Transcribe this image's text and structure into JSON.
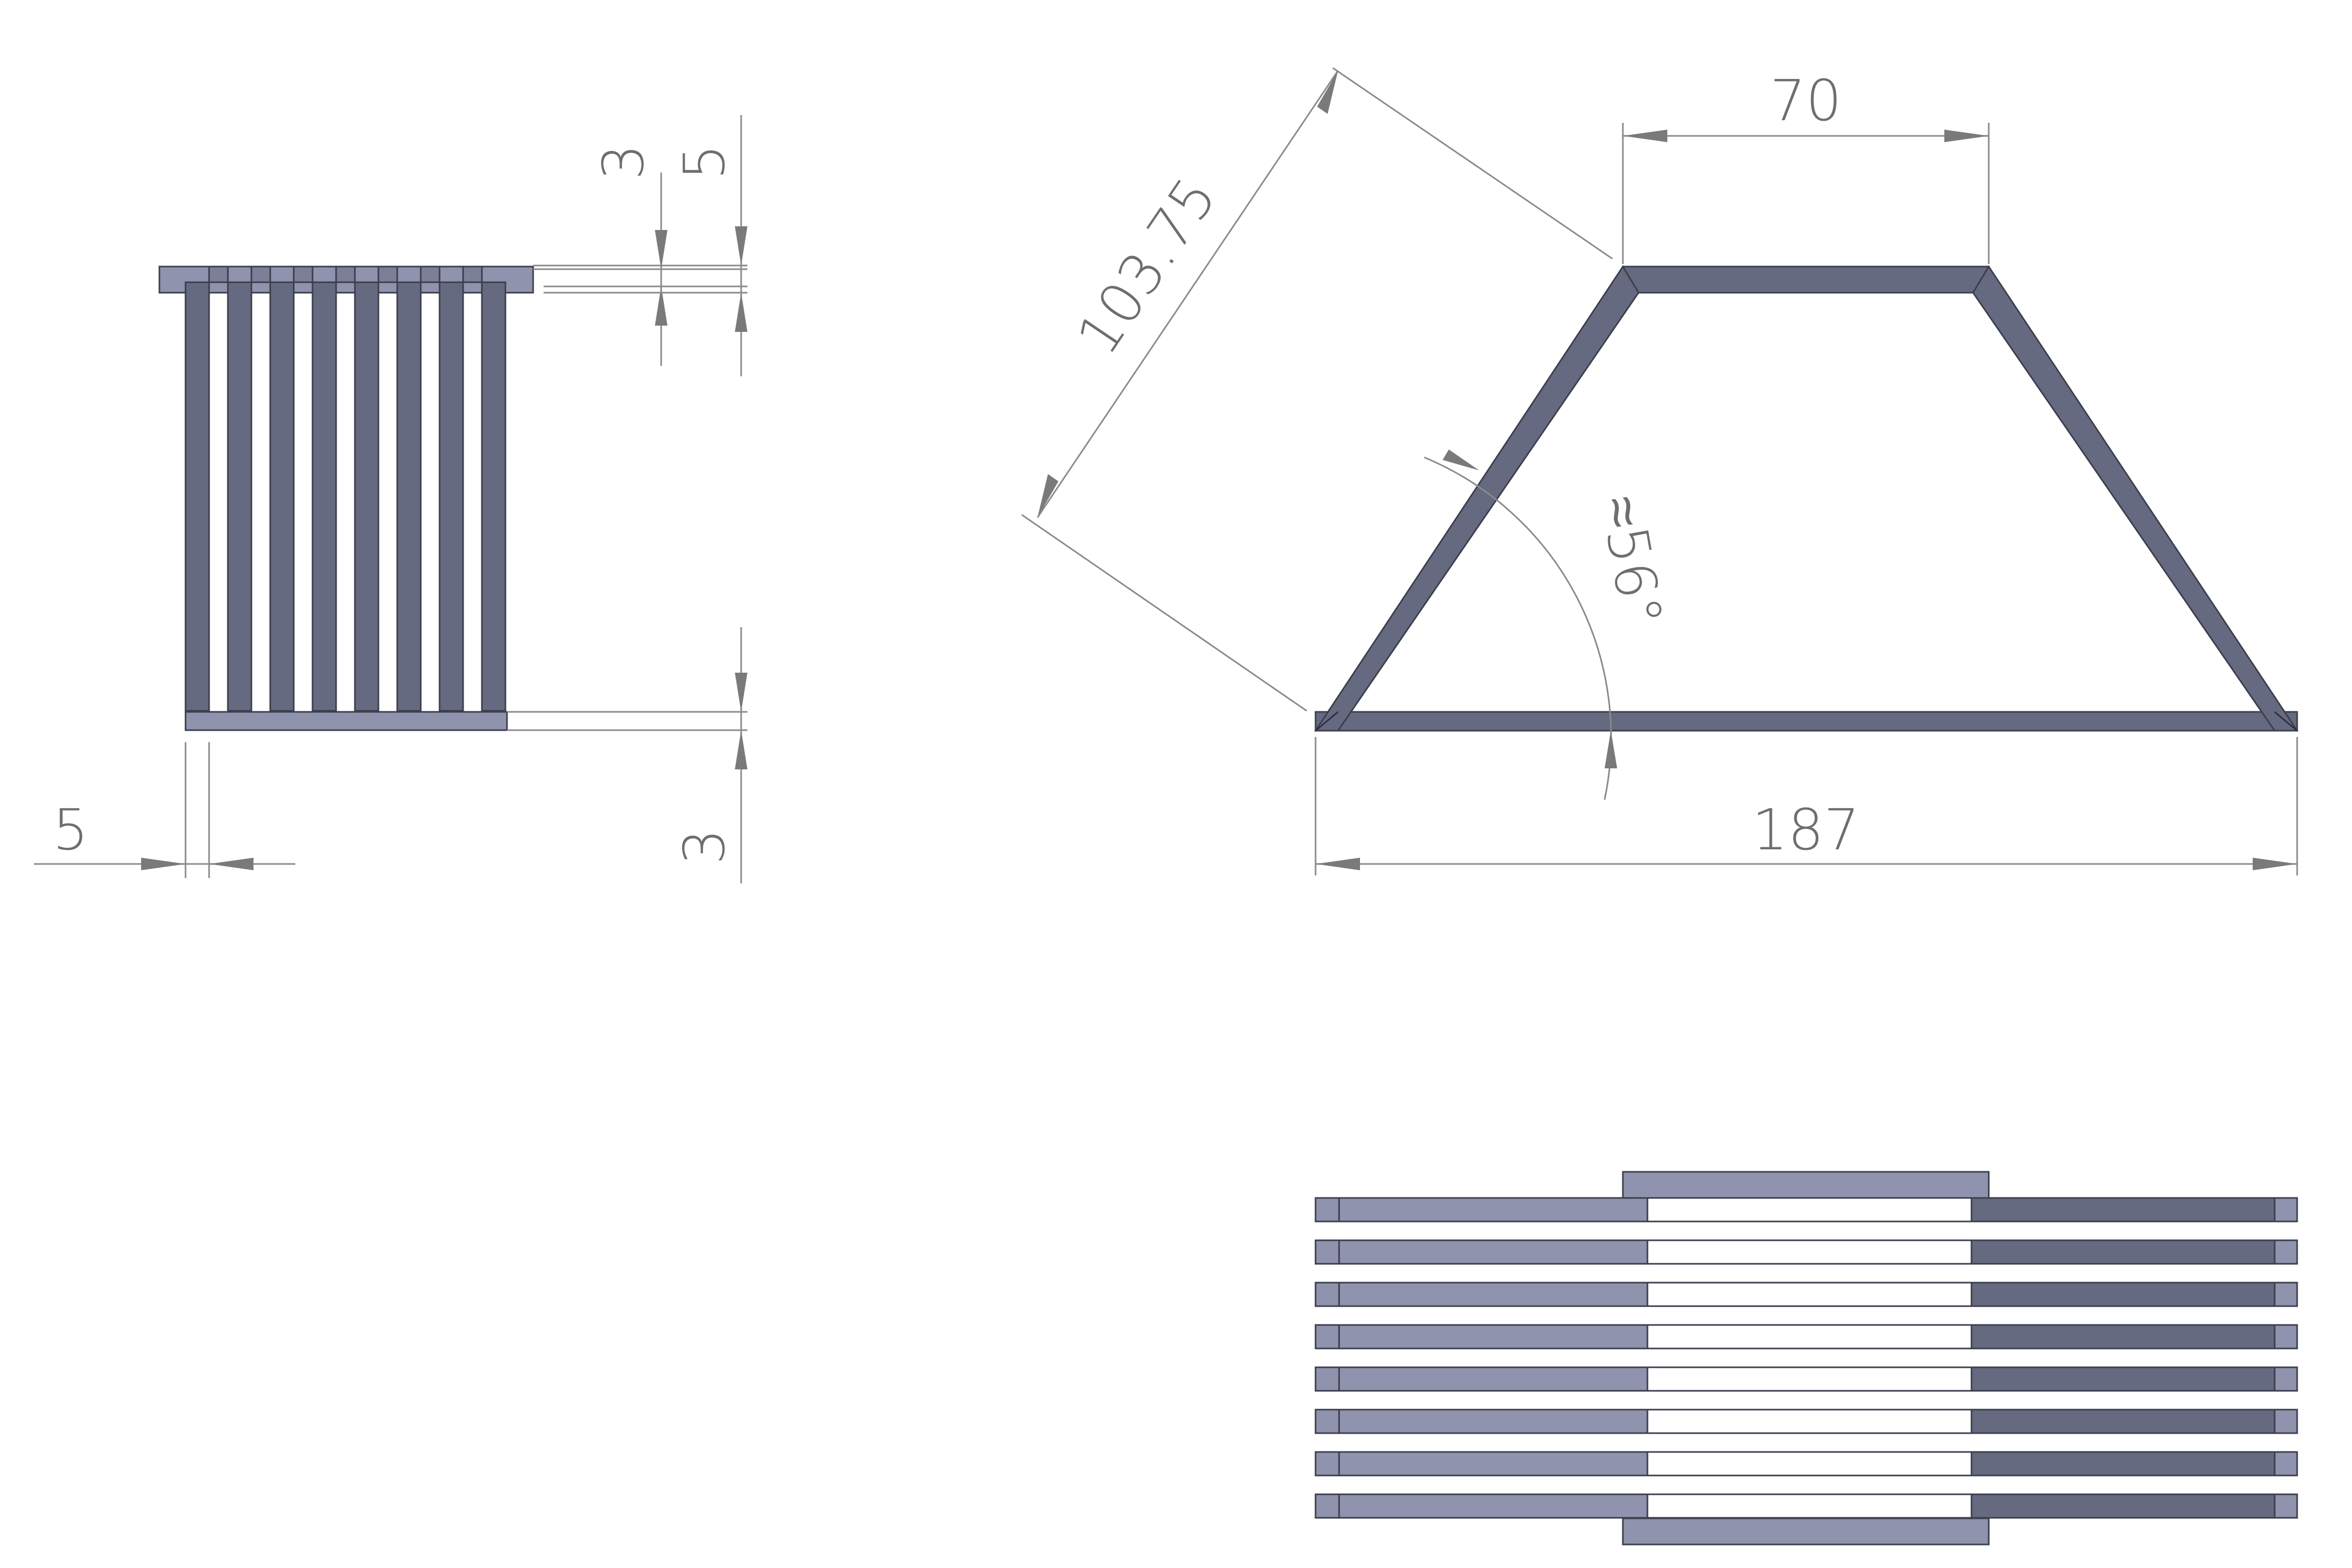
{
  "drawing": {
    "background": "#ffffff",
    "part_color_dark": "#656a80",
    "part_color_light": "#8f93ad",
    "dimension_color": "#7a7a7a"
  },
  "side_view": {
    "dim_top_inner": "3",
    "dim_top_outer": "5",
    "dim_bottom": "3",
    "dim_left": "5"
  },
  "front_view": {
    "dim_top_width": "70",
    "dim_slant_length": "103.75",
    "dim_angle": "≈56°",
    "dim_bottom_width": "187"
  }
}
